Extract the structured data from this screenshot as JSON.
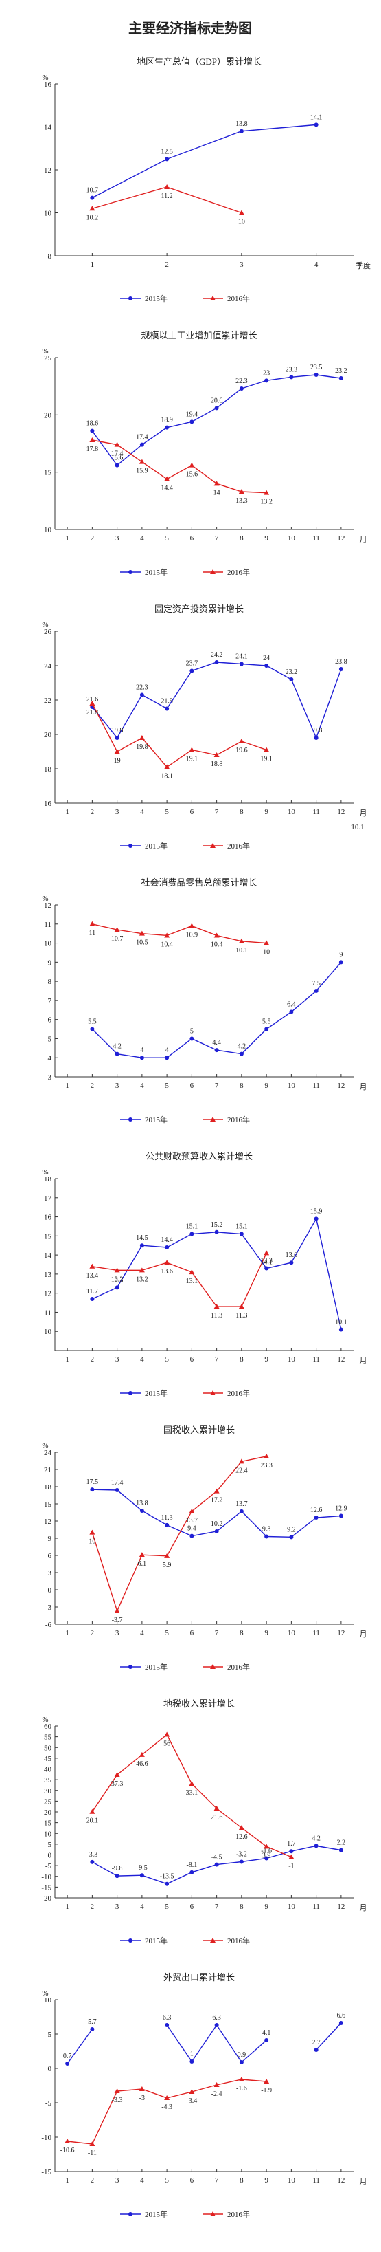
{
  "title": "主要经济指标走势图",
  "chart_data": [
    {
      "type": "line",
      "title": "地区生产总值（GDP）累计增长",
      "y_unit": "%",
      "x_label": "季度",
      "x": [
        1,
        2,
        3,
        4
      ],
      "xlim": [
        0.5,
        4.5
      ],
      "xticks": [
        1,
        2,
        3,
        4
      ],
      "ylim": [
        8,
        16
      ],
      "yticks": [
        8,
        10,
        12,
        14,
        16
      ],
      "series": [
        {
          "name": "2015年",
          "color": "#1f1fd6",
          "marker": "circle",
          "values": [
            10.7,
            12.5,
            13.8,
            14.1
          ]
        },
        {
          "name": "2016年",
          "color": "#e02020",
          "marker": "triangle",
          "values": [
            10.2,
            11.2,
            10.0,
            null
          ]
        }
      ]
    },
    {
      "type": "line",
      "title": "规模以上工业增加值累计增长",
      "y_unit": "%",
      "x_label": "月",
      "x": [
        1,
        2,
        3,
        4,
        5,
        6,
        7,
        8,
        9,
        10,
        11,
        12
      ],
      "xlim": [
        0.5,
        12.5
      ],
      "xticks": [
        1,
        2,
        3,
        4,
        5,
        6,
        7,
        8,
        9,
        10,
        11,
        12
      ],
      "ylim": [
        10,
        25
      ],
      "yticks": [
        10,
        15,
        20,
        25
      ],
      "series": [
        {
          "name": "2015年",
          "color": "#1f1fd6",
          "marker": "circle",
          "values": [
            null,
            18.6,
            15.6,
            17.4,
            18.9,
            19.4,
            20.6,
            22.3,
            23.0,
            23.3,
            23.5,
            23.2
          ]
        },
        {
          "name": "2016年",
          "color": "#e02020",
          "marker": "triangle",
          "values": [
            null,
            17.8,
            17.4,
            15.9,
            14.4,
            15.6,
            14.0,
            13.3,
            13.2,
            null,
            null,
            null
          ]
        }
      ]
    },
    {
      "type": "line",
      "title": "固定资产投资累计增长",
      "y_unit": "%",
      "x_label": "月",
      "note": "10.1",
      "x": [
        1,
        2,
        3,
        4,
        5,
        6,
        7,
        8,
        9,
        10,
        11,
        12
      ],
      "xlim": [
        0.5,
        12.5
      ],
      "xticks": [
        1,
        2,
        3,
        4,
        5,
        6,
        7,
        8,
        9,
        10,
        11,
        12
      ],
      "ylim": [
        16,
        26
      ],
      "yticks": [
        16,
        18,
        20,
        22,
        24,
        26
      ],
      "series": [
        {
          "name": "2015年",
          "color": "#1f1fd6",
          "marker": "circle",
          "values": [
            null,
            21.6,
            19.8,
            22.3,
            21.5,
            23.7,
            24.2,
            24.1,
            24.0,
            23.2,
            19.8,
            23.8
          ]
        },
        {
          "name": "2016年",
          "color": "#e02020",
          "marker": "triangle",
          "values": [
            null,
            21.8,
            19.0,
            19.8,
            18.1,
            19.1,
            18.8,
            19.6,
            19.1,
            null,
            null,
            null
          ]
        }
      ]
    },
    {
      "type": "line",
      "title": "社会消费品零售总额累计增长",
      "y_unit": "%",
      "x_label": "月",
      "x": [
        1,
        2,
        3,
        4,
        5,
        6,
        7,
        8,
        9,
        10,
        11,
        12
      ],
      "xlim": [
        0.5,
        12.5
      ],
      "xticks": [
        1,
        2,
        3,
        4,
        5,
        6,
        7,
        8,
        9,
        10,
        11,
        12
      ],
      "ylim": [
        3,
        12
      ],
      "yticks": [
        3,
        4,
        5,
        6,
        7,
        8,
        9,
        10,
        11,
        12
      ],
      "series": [
        {
          "name": "2015年",
          "color": "#1f1fd6",
          "marker": "circle",
          "values": [
            null,
            5.5,
            4.2,
            4.0,
            4.0,
            5.0,
            4.4,
            4.2,
            5.5,
            6.4,
            7.5,
            9.0
          ]
        },
        {
          "name": "2016年",
          "color": "#e02020",
          "marker": "triangle",
          "values": [
            null,
            11.0,
            10.7,
            10.5,
            10.4,
            10.9,
            10.4,
            10.1,
            10.0,
            null,
            null,
            null
          ]
        }
      ]
    },
    {
      "type": "line",
      "title": "公共财政预算收入累计增长",
      "y_unit": "%",
      "x_label": "月",
      "x": [
        1,
        2,
        3,
        4,
        5,
        6,
        7,
        8,
        9,
        10,
        11,
        12
      ],
      "xlim": [
        0.5,
        12.5
      ],
      "xticks": [
        1,
        2,
        3,
        4,
        5,
        6,
        7,
        8,
        9,
        10,
        11,
        12
      ],
      "ylim": [
        9,
        18
      ],
      "yticks": [
        10,
        11,
        12,
        13,
        14,
        15,
        16,
        17,
        18
      ],
      "series": [
        {
          "name": "2015年",
          "color": "#1f1fd6",
          "marker": "circle",
          "values": [
            null,
            11.7,
            12.3,
            14.5,
            14.4,
            15.1,
            15.2,
            15.1,
            13.3,
            13.6,
            15.9,
            10.1
          ]
        },
        {
          "name": "2016年",
          "color": "#e02020",
          "marker": "triangle",
          "values": [
            null,
            13.4,
            13.2,
            13.2,
            13.6,
            13.1,
            11.3,
            11.3,
            14.1,
            null,
            null,
            null
          ]
        }
      ]
    },
    {
      "type": "line",
      "title": "国税收入累计增长",
      "y_unit": "%",
      "x_label": "月",
      "x": [
        1,
        2,
        3,
        4,
        5,
        6,
        7,
        8,
        9,
        10,
        11,
        12
      ],
      "xlim": [
        0.5,
        12.5
      ],
      "xticks": [
        1,
        2,
        3,
        4,
        5,
        6,
        7,
        8,
        9,
        10,
        11,
        12
      ],
      "ylim": [
        -6,
        24
      ],
      "yticks": [
        -6,
        -3,
        0,
        3,
        6,
        9,
        12,
        15,
        18,
        21,
        24
      ],
      "series": [
        {
          "name": "2015年",
          "color": "#1f1fd6",
          "marker": "circle",
          "values": [
            null,
            17.5,
            17.4,
            13.8,
            11.3,
            9.4,
            10.2,
            13.7,
            9.3,
            9.2,
            12.6,
            12.9
          ]
        },
        {
          "name": "2016年",
          "color": "#e02020",
          "marker": "triangle",
          "values": [
            null,
            10.0,
            -3.7,
            6.1,
            5.9,
            13.7,
            17.2,
            22.4,
            23.3,
            null,
            null,
            null
          ]
        }
      ]
    },
    {
      "type": "line",
      "title": "地税收入累计增长",
      "y_unit": "%",
      "x_label": "月",
      "x": [
        1,
        2,
        3,
        4,
        5,
        6,
        7,
        8,
        9,
        10,
        11,
        12
      ],
      "xlim": [
        0.5,
        12.5
      ],
      "xticks": [
        1,
        2,
        3,
        4,
        5,
        6,
        7,
        8,
        9,
        10,
        11,
        12
      ],
      "ylim": [
        -20,
        60
      ],
      "yticks": [
        -20,
        -15,
        -10,
        -5,
        0,
        5,
        10,
        15,
        20,
        25,
        30,
        35,
        40,
        45,
        50,
        55,
        60
      ],
      "series": [
        {
          "name": "2015年",
          "color": "#1f1fd6",
          "marker": "circle",
          "values": [
            null,
            -3.3,
            -9.8,
            -9.5,
            -13.5,
            -8.1,
            -4.5,
            -3.2,
            -1.6,
            1.7,
            4.2,
            2.2
          ]
        },
        {
          "name": "2016年",
          "color": "#e02020",
          "marker": "triangle",
          "values": [
            null,
            20.1,
            37.3,
            46.6,
            56.0,
            33.1,
            21.6,
            12.6,
            3.9,
            -1.0,
            null,
            null
          ]
        }
      ]
    },
    {
      "type": "line",
      "title": "外贸出口累计增长",
      "y_unit": "%",
      "x_label": "月",
      "x": [
        1,
        2,
        3,
        4,
        5,
        6,
        7,
        8,
        9,
        10,
        11,
        12
      ],
      "xlim": [
        0.5,
        12.5
      ],
      "xticks": [
        1,
        2,
        3,
        4,
        5,
        6,
        7,
        8,
        9,
        10,
        11,
        12
      ],
      "ylim": [
        -15,
        10
      ],
      "yticks": [
        -15,
        -10,
        -5,
        0,
        5,
        10
      ],
      "series": [
        {
          "name": "2015年",
          "color": "#1f1fd6",
          "marker": "circle",
          "values": [
            0.7,
            5.7,
            null,
            null,
            6.3,
            1.0,
            6.3,
            0.9,
            4.1,
            null,
            2.7,
            6.6
          ]
        },
        {
          "name": "2016年",
          "color": "#e02020",
          "marker": "triangle",
          "values": [
            -10.6,
            -11.0,
            -3.3,
            -3.0,
            -4.3,
            -3.4,
            -2.4,
            -1.6,
            -1.9,
            null,
            null,
            null
          ]
        }
      ]
    }
  ]
}
